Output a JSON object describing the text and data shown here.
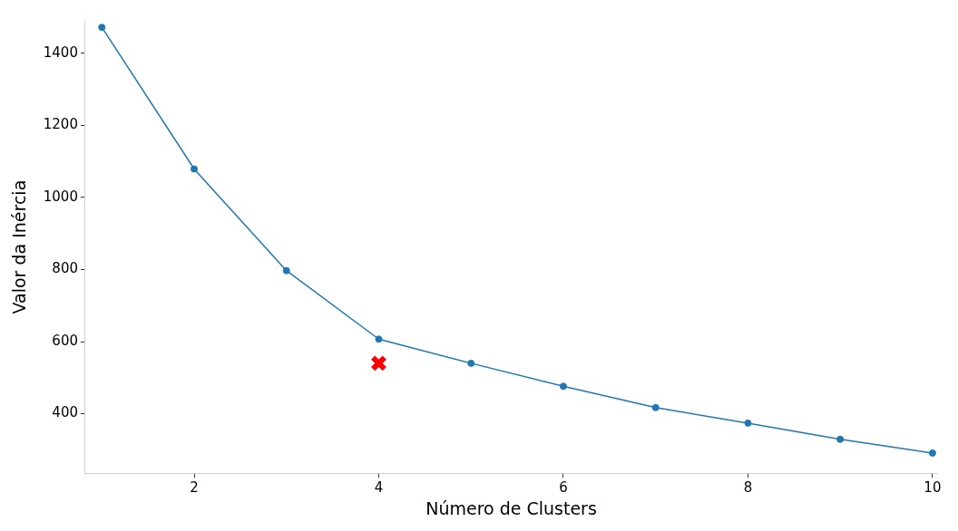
{
  "chart_data": {
    "type": "line",
    "xlabel": "Número de Clusters",
    "ylabel": "Valor da Inércia",
    "xlim": [
      0.82,
      10.05
    ],
    "ylim": [
      235,
      1490
    ],
    "xticks": [
      2,
      4,
      6,
      8,
      10
    ],
    "yticks": [
      400,
      600,
      800,
      1000,
      1200,
      1400
    ],
    "grid": false,
    "legend": false,
    "marker": "circle",
    "line_style": "solid",
    "series": [
      {
        "type": "line",
        "color": "#1f77b4",
        "x": [
          1,
          2,
          3,
          4,
          5,
          6,
          7,
          8,
          9,
          10
        ],
        "values": [
          1472,
          1079,
          797,
          607,
          540,
          476,
          417,
          374,
          329,
          291
        ]
      },
      {
        "type": "scatter",
        "color": "#ff0000",
        "marker": "cross",
        "x": [
          4
        ],
        "values": [
          540
        ]
      }
    ]
  }
}
